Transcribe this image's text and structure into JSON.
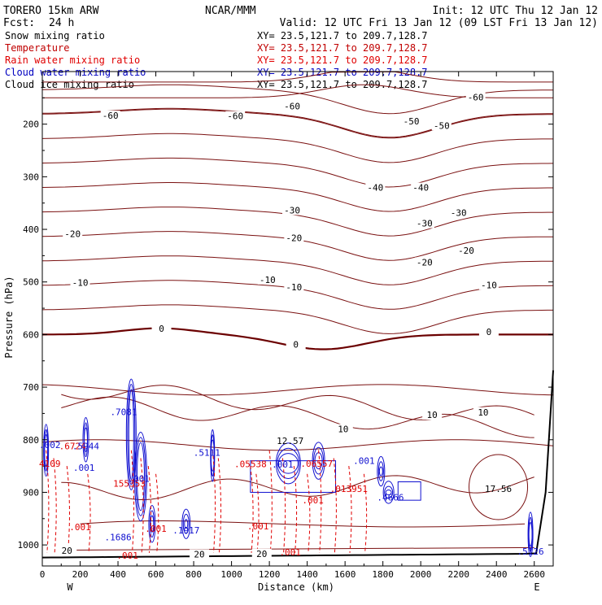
{
  "header": {
    "model": "TORERO  15km ARW",
    "center": "NCAR/MMM",
    "init": "Init: 12 UTC Thu 12 Jan 12",
    "fcst_label": "Fcst:",
    "fcst_value": "24 h",
    "valid": "Valid: 12 UTC Fri 13 Jan 12 (09 LST Fri 13 Jan 12)"
  },
  "fields": [
    {
      "name": "Snow mixing ratio",
      "xy": "XY=  23.5,121.7 to 209.7,128.7",
      "color": "#000000"
    },
    {
      "name": "Temperature",
      "xy": "XY=  23.5,121.7 to 209.7,128.7",
      "color": "#c00000"
    },
    {
      "name": "Rain water mixing ratio",
      "xy": "XY=  23.5,121.7 to 209.7,128.7",
      "color": "#e00000"
    },
    {
      "name": "Cloud water mixing ratio",
      "xy": "XY=  23.5,121.7 to 209.7,128.7",
      "color": "#0000c0"
    },
    {
      "name": "Cloud ice mixing ratio",
      "xy": "XY=  23.5,121.7 to 209.7,128.7",
      "color": "#000000"
    }
  ],
  "colors": {
    "temperature": "#7a1010",
    "freezing_line": "#6b0000",
    "rain": "#e00000",
    "cloud_water": "#1010d0",
    "terrain": "#000000"
  },
  "chart_data": {
    "type": "contour",
    "xlabel": "Distance (km)",
    "ylabel": "Pressure (hPa)",
    "xlim": [
      0,
      2700
    ],
    "ylim": [
      1040,
      100
    ],
    "x_ticks": [
      0,
      200,
      400,
      600,
      800,
      1000,
      1200,
      1400,
      1600,
      1800,
      2000,
      2200,
      2400,
      2600
    ],
    "y_ticks": [
      200,
      300,
      400,
      500,
      600,
      700,
      800,
      900,
      1000
    ],
    "x_tick_labels": [
      "0",
      "200",
      "400",
      "600",
      "800",
      "1000",
      "1200",
      "1400",
      "1600",
      "1800",
      "2000",
      "2200",
      "2400",
      "2600"
    ],
    "y_tick_labels": [
      "200",
      "300",
      "400",
      "500",
      "600",
      "700",
      "800",
      "900",
      "1000"
    ],
    "west_label": "W",
    "east_label": "E",
    "temperature_contours": [
      {
        "level": -60,
        "labels": [
          {
            "x": 360,
            "p": 185,
            "text": "-60"
          },
          {
            "x": 1020,
            "p": 186,
            "text": "-60"
          },
          {
            "x": 1320,
            "p": 167,
            "text": "-60"
          },
          {
            "x": 2290,
            "p": 150,
            "text": "-60"
          }
        ]
      },
      {
        "level": -50,
        "labels": [
          {
            "x": 1950,
            "p": 196,
            "text": "-50"
          },
          {
            "x": 2110,
            "p": 204,
            "text": "-50"
          }
        ]
      },
      {
        "level": -40,
        "labels": [
          {
            "x": 1760,
            "p": 322,
            "text": "-40"
          },
          {
            "x": 2000,
            "p": 322,
            "text": "-40"
          }
        ]
      },
      {
        "level": -30,
        "labels": [
          {
            "x": 1320,
            "p": 365,
            "text": "-30"
          },
          {
            "x": 2020,
            "p": 390,
            "text": "-30"
          },
          {
            "x": 2200,
            "p": 370,
            "text": "-30"
          }
        ]
      },
      {
        "level": -20,
        "labels": [
          {
            "x": 160,
            "p": 410,
            "text": "-20"
          },
          {
            "x": 1330,
            "p": 418,
            "text": "-20"
          },
          {
            "x": 2020,
            "p": 464,
            "text": "-20"
          },
          {
            "x": 2240,
            "p": 442,
            "text": "-20"
          }
        ]
      },
      {
        "level": -10,
        "labels": [
          {
            "x": 200,
            "p": 503,
            "text": "-10"
          },
          {
            "x": 1190,
            "p": 497,
            "text": "-10"
          },
          {
            "x": 1330,
            "p": 511,
            "text": "-10"
          },
          {
            "x": 2360,
            "p": 507,
            "text": "-10"
          }
        ]
      },
      {
        "level": 0,
        "labels": [
          {
            "x": 630,
            "p": 590,
            "text": "0"
          },
          {
            "x": 1340,
            "p": 620,
            "text": "0"
          },
          {
            "x": 2360,
            "p": 596,
            "text": "0"
          }
        ]
      },
      {
        "level": 10,
        "labels": [
          {
            "x": 1590,
            "p": 781,
            "text": "10"
          },
          {
            "x": 2060,
            "p": 754,
            "text": "10"
          },
          {
            "x": 2330,
            "p": 749,
            "text": "10"
          }
        ]
      },
      {
        "level": 20,
        "labels": [
          {
            "x": 130,
            "p": 1012,
            "text": "20"
          },
          {
            "x": 830,
            "p": 1019,
            "text": "20"
          },
          {
            "x": 1160,
            "p": 1018,
            "text": "20"
          }
        ]
      }
    ],
    "maxima_labels": [
      {
        "x": 1310,
        "p": 802,
        "text": "12.57",
        "color": "temperature"
      },
      {
        "x": 2410,
        "p": 893,
        "text": "17.56",
        "color": "temperature"
      },
      {
        "x": 40,
        "p": 845,
        "text": "4109",
        "color": "rain"
      },
      {
        "x": 160,
        "p": 812,
        "text": ".6724",
        "color": "rain"
      },
      {
        "x": 460,
        "p": 883,
        "text": "155353",
        "color": "rain"
      },
      {
        "x": 1100,
        "p": 846,
        "text": ".05538",
        "color": "rain"
      },
      {
        "x": 1450,
        "p": 845,
        "text": ".06557",
        "color": "rain"
      },
      {
        "x": 1620,
        "p": 893,
        "text": ".013951",
        "color": "rain"
      },
      {
        "x": 200,
        "p": 966,
        "text": ".001",
        "color": "rain"
      },
      {
        "x": 1140,
        "p": 964,
        "text": ".001",
        "color": "rain"
      },
      {
        "x": 1310,
        "p": 1014,
        "text": ".001",
        "color": "rain"
      },
      {
        "x": 1430,
        "p": 915,
        "text": ".001",
        "color": "rain"
      },
      {
        "x": 450,
        "p": 1020,
        "text": ".001",
        "color": "rain"
      },
      {
        "x": 600,
        "p": 969,
        "text": ".001",
        "color": "rain"
      },
      {
        "x": 40,
        "p": 810,
        "text": ".002",
        "color": "cloud_water"
      },
      {
        "x": 230,
        "p": 812,
        "text": ".5944",
        "color": "cloud_water"
      },
      {
        "x": 430,
        "p": 747,
        "text": ".7081",
        "color": "cloud_water"
      },
      {
        "x": 870,
        "p": 824,
        "text": ".5111",
        "color": "cloud_water"
      },
      {
        "x": 1270,
        "p": 847,
        "text": ".001",
        "color": "cloud_water"
      },
      {
        "x": 1700,
        "p": 840,
        "text": ".001",
        "color": "cloud_water"
      },
      {
        "x": 1840,
        "p": 909,
        "text": ".4666",
        "color": "cloud_water"
      },
      {
        "x": 220,
        "p": 853,
        "text": ".001",
        "color": "cloud_water"
      },
      {
        "x": 510,
        "p": 874,
        "text": ".001",
        "color": "cloud_water"
      },
      {
        "x": 760,
        "p": 972,
        "text": ".1917",
        "color": "cloud_water"
      },
      {
        "x": 400,
        "p": 985,
        "text": ".1686",
        "color": "cloud_water"
      },
      {
        "x": 2580,
        "p": 1012,
        "text": ".5126",
        "color": "cloud_water"
      }
    ]
  }
}
